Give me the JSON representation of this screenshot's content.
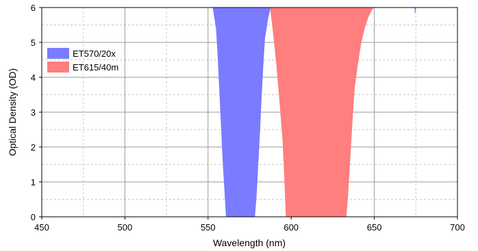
{
  "chart_data": {
    "type": "area",
    "title": "",
    "xlabel": "Wavelength (nm)",
    "ylabel": "Optical Density (OD)",
    "xlim": [
      450,
      700
    ],
    "ylim": [
      0,
      6
    ],
    "x_ticks": [
      450,
      500,
      550,
      600,
      650,
      700
    ],
    "y_ticks": [
      0,
      1,
      2,
      3,
      4,
      5,
      6
    ],
    "grid": true,
    "legend_position": "upper-left",
    "series": [
      {
        "name": "ET570/20x",
        "color": "#7b7bff",
        "x": [
          553,
          555,
          556,
          557,
          558,
          559,
          560,
          561,
          570,
          578,
          579,
          580,
          581,
          582,
          583,
          584,
          586,
          587.5
        ],
        "y": [
          6,
          5.4,
          4.6,
          3.6,
          2.6,
          1.6,
          0.8,
          0,
          0,
          0,
          0.6,
          1.5,
          2.4,
          3.4,
          4.3,
          5.1,
          5.7,
          6
        ]
      },
      {
        "name": "ET615/40m",
        "color": "#ff7e7e",
        "x": [
          587.5,
          589,
          591,
          593,
          595,
          596,
          597,
          614,
          633,
          634,
          635,
          636,
          637,
          638,
          640,
          642,
          644,
          646,
          648,
          649.5
        ],
        "y": [
          6,
          5.4,
          4.5,
          3.4,
          2.2,
          1.2,
          0,
          0,
          0,
          0.6,
          1.4,
          2.2,
          3.0,
          3.7,
          4.4,
          5.0,
          5.4,
          5.7,
          5.9,
          6
        ]
      },
      {
        "name": "",
        "color": "#7b7bff",
        "x": [
          674.4,
          674.6,
          674.8
        ],
        "y": [
          6,
          5.85,
          6
        ]
      }
    ]
  }
}
